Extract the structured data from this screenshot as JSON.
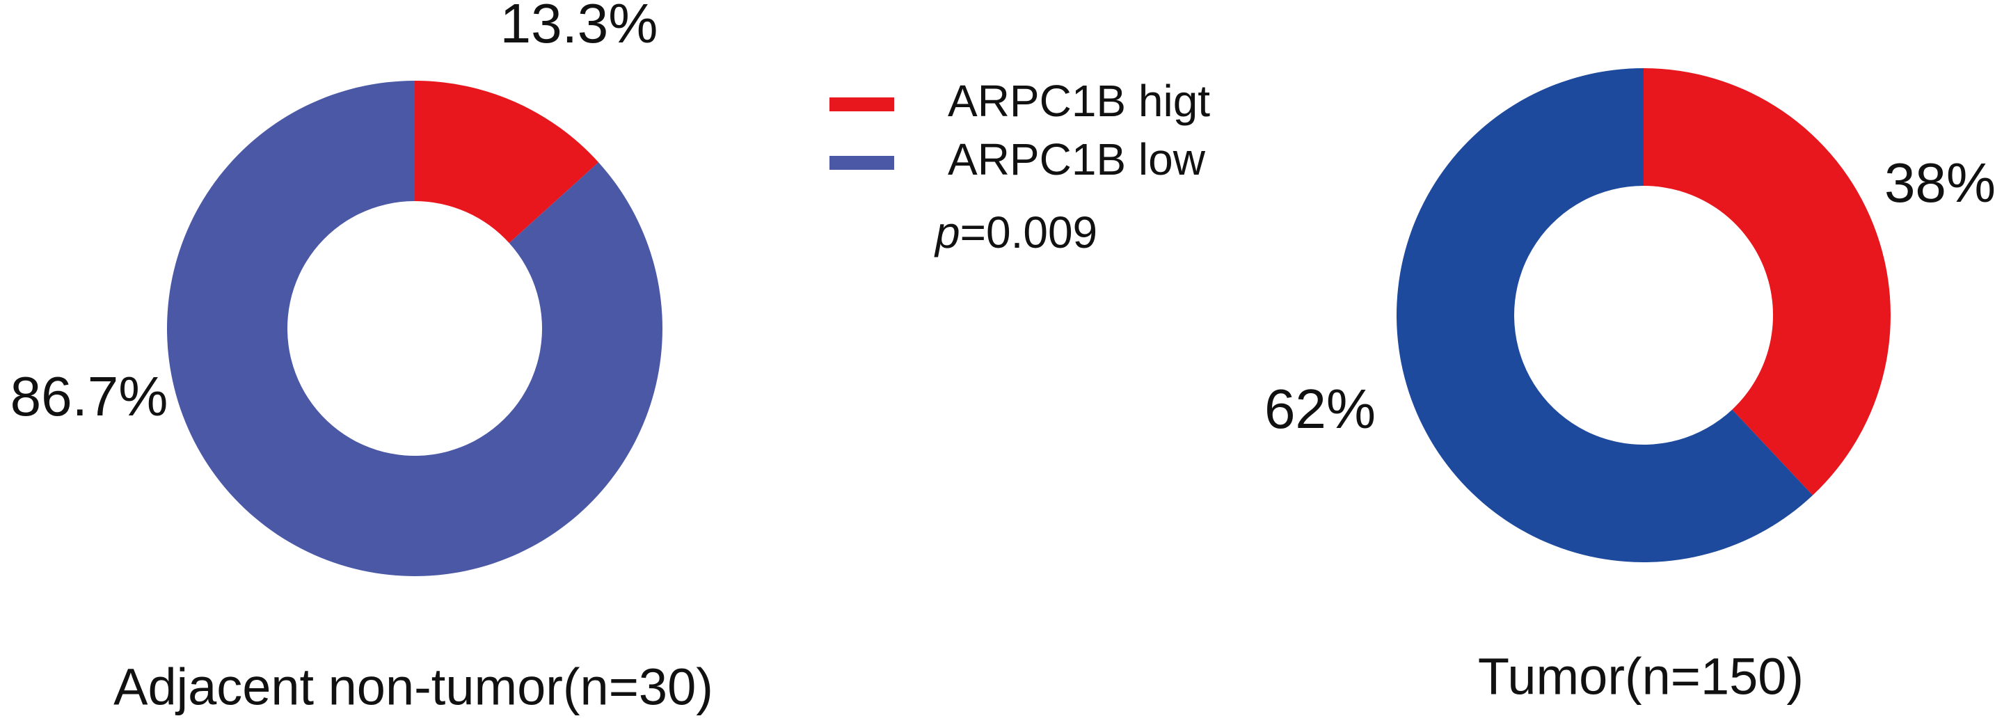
{
  "chart_data": [
    {
      "type": "pie",
      "donut": true,
      "title": "Adjacent non-tumor(n=30)",
      "categories": [
        "ARPC1B higt",
        "ARPC1B low"
      ],
      "values": [
        13.3,
        86.7
      ],
      "value_labels": [
        "13.3%",
        "86.7%"
      ],
      "colors": [
        "#e8161d",
        "#4a58a6"
      ],
      "annotation": "p=0.009"
    },
    {
      "type": "pie",
      "donut": true,
      "title": "Tumor(n=150)",
      "categories": [
        "ARPC1B higt",
        "ARPC1B low"
      ],
      "values": [
        38,
        62
      ],
      "value_labels": [
        "38%",
        "62%"
      ],
      "colors": [
        "#e8161d",
        "#1d4a9c"
      ]
    }
  ]
}
